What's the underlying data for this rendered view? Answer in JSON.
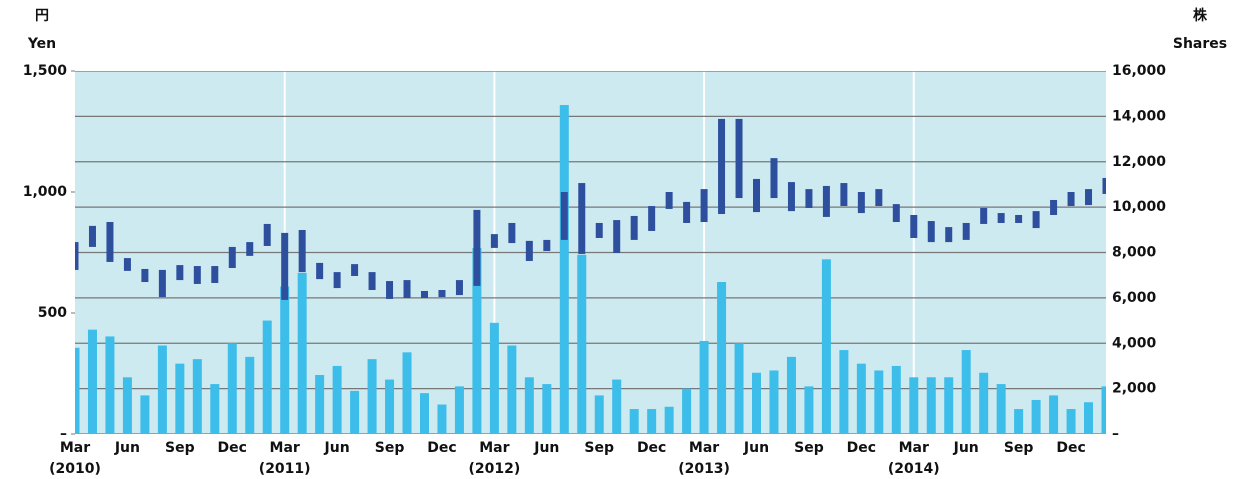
{
  "chart_data": {
    "type": "stock-volume",
    "y_label_jp": "円",
    "y_label": "Yen",
    "y2_label_jp": "株",
    "y2_label": "Shares",
    "categories": [
      "Mar",
      null,
      null,
      "Jun",
      null,
      null,
      "Sep",
      null,
      null,
      "Dec",
      null,
      null,
      "Mar",
      null,
      null,
      "Jun",
      null,
      null,
      "Sep",
      null,
      null,
      "Dec",
      null,
      null,
      "Mar",
      null,
      null,
      "Jun",
      null,
      null,
      "Sep",
      null,
      null,
      "Dec",
      null,
      null,
      "Mar",
      null,
      null,
      "Jun",
      null,
      null,
      "Sep",
      null,
      null,
      "Dec",
      null,
      null,
      "Mar",
      null,
      null,
      "Jun",
      null,
      null,
      "Sep",
      null,
      null,
      "Dec",
      null,
      null
    ],
    "year_labels": [
      "(2010)",
      "(2011)",
      "(2012)",
      "(2013)",
      "(2014)"
    ],
    "ylim": [
      0,
      1500
    ],
    "yticks": [
      {
        "value": 0,
        "label": "–"
      },
      500,
      {
        "value": 1000,
        "label": "1,000"
      },
      {
        "value": 1500,
        "label": "1,500"
      }
    ],
    "y2lim": [
      0,
      16000
    ],
    "y2ticks": [
      {
        "value": 0,
        "label": "–"
      },
      {
        "value": 2000,
        "label": "2,000"
      },
      {
        "value": 4000,
        "label": "4,000"
      },
      {
        "value": 6000,
        "label": "6,000"
      },
      {
        "value": 8000,
        "label": "8,000"
      },
      {
        "value": 10000,
        "label": "10,000"
      },
      {
        "value": 12000,
        "label": "12,000"
      },
      {
        "value": 14000,
        "label": "14,000"
      },
      {
        "value": 16000,
        "label": "16,000"
      }
    ],
    "grid": true,
    "background": "#cdeaf0",
    "series": [
      {
        "name": "high",
        "color": "#2e4f9e",
        "values": [
          793,
          860,
          876,
          727,
          682,
          678,
          698,
          694,
          694,
          773,
          793,
          868,
          831,
          843,
          707,
          669,
          702,
          669,
          632,
          636,
          591,
          595,
          636,
          926,
          826,
          872,
          798,
          802,
          1000,
          1037,
          872,
          884,
          901,
          942,
          1000,
          959,
          1012,
          1302,
          1302,
          1054,
          1140,
          1041,
          1012,
          1025,
          1037,
          1000,
          1012,
          950,
          905,
          880,
          855,
          872,
          934,
          913,
          905,
          921,
          967,
          1000,
          1012,
          1058
        ]
      },
      {
        "name": "low",
        "color": "#2e4f9e",
        "values": [
          678,
          773,
          711,
          674,
          628,
          566,
          636,
          620,
          624,
          686,
          736,
          777,
          554,
          669,
          640,
          603,
          653,
          595,
          558,
          562,
          562,
          566,
          574,
          612,
          769,
          789,
          715,
          756,
          802,
          744,
          810,
          748,
          802,
          839,
          930,
          872,
          876,
          909,
          975,
          917,
          975,
          921,
          934,
          897,
          942,
          913,
          942,
          876,
          810,
          793,
          793,
          802,
          868,
          872,
          872,
          851,
          905,
          942,
          946,
          992
        ]
      },
      {
        "name": "volume",
        "color": "#3dbdea",
        "axis": "y2",
        "values": [
          3800,
          4600,
          4300,
          2500,
          1700,
          3900,
          3100,
          3300,
          2200,
          4000,
          3400,
          5000,
          6500,
          7100,
          2600,
          3000,
          1900,
          3300,
          2400,
          3600,
          1800,
          1300,
          2100,
          8200,
          4900,
          3900,
          2500,
          2200,
          14500,
          7900,
          1700,
          2400,
          1100,
          1100,
          1200,
          2000,
          4100,
          6700,
          4000,
          2700,
          2800,
          3400,
          2100,
          7700,
          3700,
          3100,
          2800,
          3000,
          2500,
          2500,
          2500,
          3700,
          2700,
          2200,
          1100,
          1500,
          1700,
          1100,
          1400,
          2100
        ]
      }
    ]
  }
}
